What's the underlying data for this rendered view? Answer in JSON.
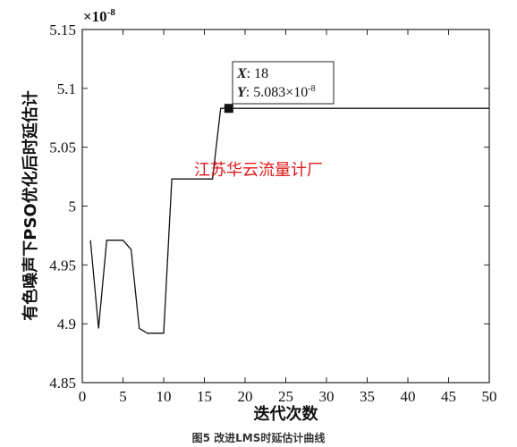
{
  "chart_data": {
    "type": "line",
    "xlabel": "迭代次数",
    "ylabel": "有色噪声下PSO优化后时延估计",
    "y_exponent_label": "×10",
    "y_exponent_power": "-8",
    "xlim": [
      0,
      50
    ],
    "ylim": [
      4.85,
      5.15
    ],
    "x_ticks": [
      0,
      5,
      10,
      15,
      20,
      25,
      30,
      35,
      40,
      45,
      50
    ],
    "y_ticks": [
      4.85,
      4.9,
      4.95,
      5,
      5.05,
      5.1,
      5.15
    ],
    "x_tick_labels": [
      "0",
      "5",
      "10",
      "15",
      "20",
      "25",
      "30",
      "35",
      "40",
      "45",
      "50"
    ],
    "y_tick_labels": [
      "4.85",
      "4.9",
      "4.95",
      "5",
      "5.05",
      "5.1",
      "5.15"
    ],
    "grid": false,
    "series": [
      {
        "x": [
          1,
          2,
          3,
          4,
          5,
          6,
          7,
          8,
          9,
          10,
          11,
          12,
          13,
          14,
          15,
          16,
          17,
          18,
          19,
          20,
          21,
          22,
          23,
          24,
          25,
          26,
          27,
          28,
          29,
          30,
          31,
          32,
          33,
          34,
          35,
          36,
          37,
          38,
          39,
          40,
          41,
          42,
          43,
          44,
          45,
          46,
          47,
          48,
          49,
          50
        ],
        "y": [
          4.971,
          4.896,
          4.971,
          4.971,
          4.971,
          4.963,
          4.896,
          4.892,
          4.892,
          4.892,
          5.023,
          5.023,
          5.023,
          5.023,
          5.023,
          5.023,
          5.083,
          5.083,
          5.083,
          5.083,
          5.083,
          5.083,
          5.083,
          5.083,
          5.083,
          5.083,
          5.083,
          5.083,
          5.083,
          5.083,
          5.083,
          5.083,
          5.083,
          5.083,
          5.083,
          5.083,
          5.083,
          5.083,
          5.083,
          5.083,
          5.083,
          5.083,
          5.083,
          5.083,
          5.083,
          5.083,
          5.083,
          5.083,
          5.083,
          5.083
        ],
        "color": "#111111"
      }
    ],
    "datatip": {
      "x": 18,
      "y": 5.083,
      "x_key": "X",
      "x_text": "18",
      "y_key": "Y",
      "y_text": "5.083×10",
      "y_power": "-8"
    },
    "watermark": "江苏华云流量计厂",
    "caption": "图5 改进LMS时延估计曲线"
  }
}
